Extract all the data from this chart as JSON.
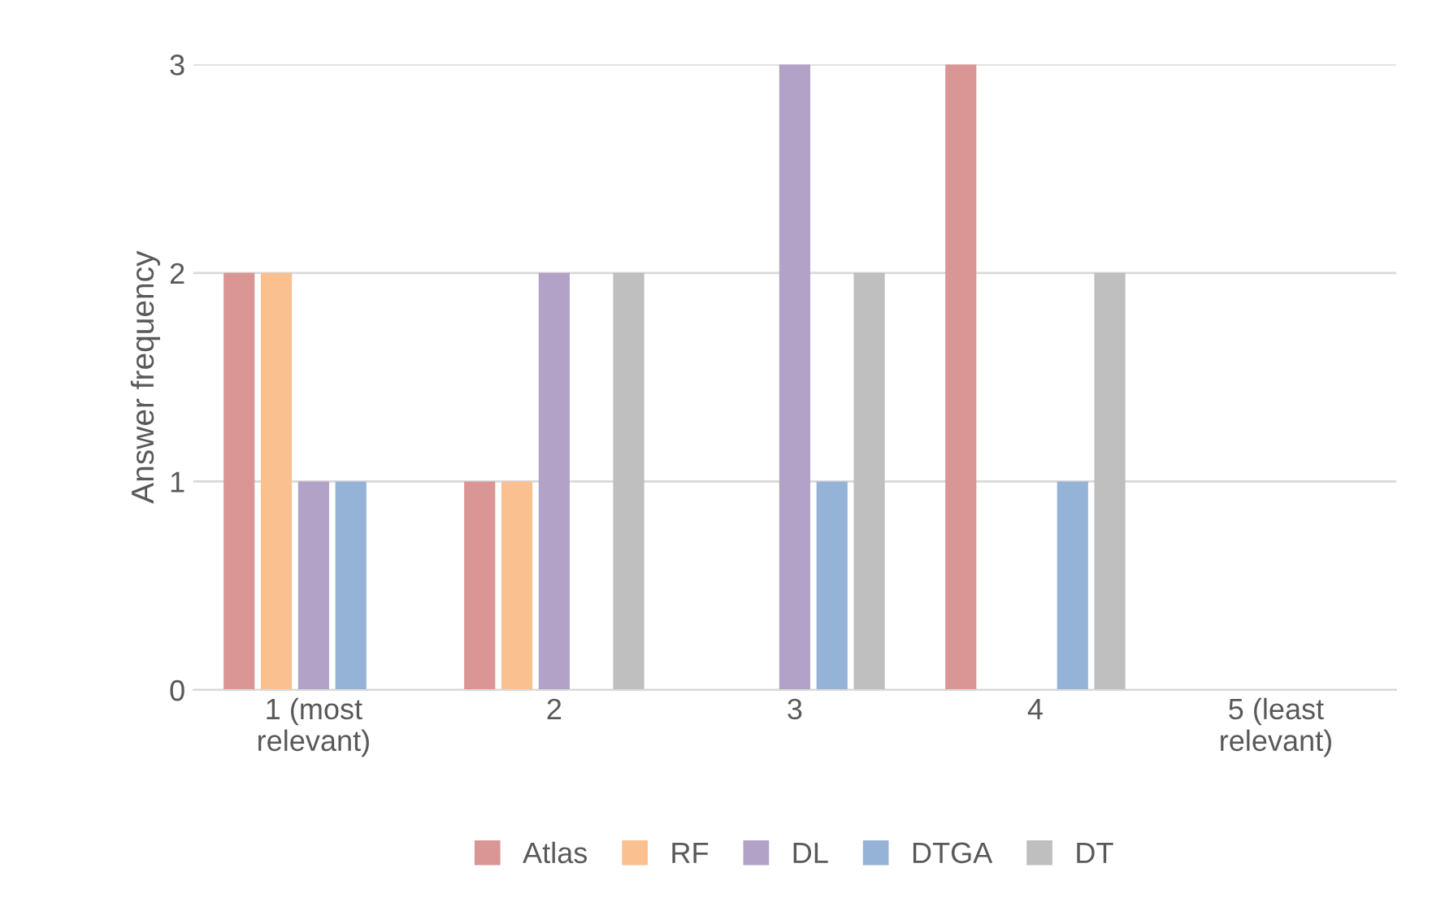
{
  "chart_data": {
    "type": "bar",
    "ylabel": "Answer frequency",
    "categories": [
      "1 (most\nrelevant)",
      "2",
      "3",
      "4",
      "5 (least\nrelevant)"
    ],
    "series": [
      {
        "name": "Atlas",
        "color": "#d99694",
        "values": [
          2,
          1,
          0,
          3,
          0
        ]
      },
      {
        "name": "RF",
        "color": "#fac090",
        "values": [
          2,
          1,
          0,
          0,
          0
        ]
      },
      {
        "name": "DL",
        "color": "#b3a2c7",
        "values": [
          1,
          2,
          3,
          0,
          0
        ]
      },
      {
        "name": "DTGA",
        "color": "#95b3d7",
        "values": [
          1,
          0,
          1,
          1,
          0
        ]
      },
      {
        "name": "DT",
        "color": "#bfbfbf",
        "values": [
          0,
          2,
          2,
          2,
          0
        ]
      }
    ],
    "ylim": [
      0,
      3
    ],
    "yticks": [
      0,
      1,
      2,
      3
    ],
    "grid": "y",
    "legend": "bottom"
  }
}
